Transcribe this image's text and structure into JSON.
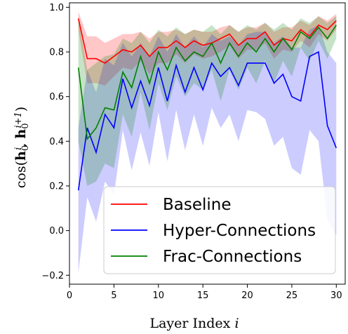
{
  "chart_data": {
    "type": "line",
    "xlabel": "Layer Index i",
    "ylabel": "cos(h0^i, h0^(i+1))",
    "xlim": [
      0,
      31
    ],
    "ylim": [
      -0.24,
      1.02
    ],
    "xticks": [
      0,
      5,
      10,
      15,
      20,
      25,
      30
    ],
    "yticks": [
      -0.2,
      0.0,
      0.2,
      0.4,
      0.6,
      0.8,
      1.0
    ],
    "ytick_labels": [
      "−0.2",
      "0.0",
      "0.2",
      "0.4",
      "0.6",
      "0.8",
      "1.0"
    ],
    "grid": false,
    "legend_position": "lower-right",
    "x": [
      1,
      2,
      3,
      4,
      5,
      6,
      7,
      8,
      9,
      10,
      11,
      12,
      13,
      14,
      15,
      16,
      17,
      18,
      19,
      20,
      21,
      22,
      23,
      24,
      25,
      26,
      27,
      28,
      29,
      30
    ],
    "series": [
      {
        "name": "Baseline",
        "color": "#ff0000",
        "values": [
          0.95,
          0.77,
          0.77,
          0.75,
          0.78,
          0.81,
          0.8,
          0.83,
          0.78,
          0.82,
          0.82,
          0.85,
          0.82,
          0.85,
          0.83,
          0.84,
          0.86,
          0.88,
          0.83,
          0.86,
          0.86,
          0.89,
          0.83,
          0.86,
          0.85,
          0.9,
          0.87,
          0.92,
          0.9,
          0.94
        ],
        "upper": [
          0.98,
          0.87,
          0.87,
          0.84,
          0.86,
          0.88,
          0.88,
          0.89,
          0.86,
          0.89,
          0.89,
          0.9,
          0.88,
          0.9,
          0.89,
          0.89,
          0.91,
          0.92,
          0.89,
          0.91,
          0.91,
          0.93,
          0.89,
          0.91,
          0.91,
          0.94,
          0.92,
          0.96,
          0.94,
          0.97
        ],
        "lower": [
          0.9,
          0.66,
          0.66,
          0.65,
          0.69,
          0.73,
          0.72,
          0.76,
          0.7,
          0.75,
          0.75,
          0.79,
          0.75,
          0.79,
          0.77,
          0.78,
          0.8,
          0.83,
          0.77,
          0.81,
          0.81,
          0.84,
          0.77,
          0.81,
          0.8,
          0.85,
          0.82,
          0.88,
          0.85,
          0.9
        ]
      },
      {
        "name": "Hyper-Connections",
        "color": "#0000ff",
        "values": [
          0.18,
          0.46,
          0.35,
          0.52,
          0.46,
          0.68,
          0.55,
          0.67,
          0.56,
          0.73,
          0.58,
          0.74,
          0.62,
          0.73,
          0.63,
          0.75,
          0.69,
          0.73,
          0.65,
          0.75,
          0.75,
          0.75,
          0.66,
          0.7,
          0.6,
          0.58,
          0.78,
          0.8,
          0.47,
          0.37
        ],
        "upper": [
          0.46,
          0.72,
          0.62,
          0.77,
          0.74,
          0.84,
          0.78,
          0.84,
          0.78,
          0.87,
          0.8,
          0.88,
          0.82,
          0.87,
          0.82,
          0.88,
          0.85,
          0.87,
          0.83,
          0.88,
          0.89,
          0.89,
          0.84,
          0.87,
          0.82,
          0.82,
          0.9,
          0.92,
          0.8,
          0.75
        ],
        "lower": [
          -0.19,
          0.15,
          0.04,
          0.22,
          0.16,
          0.45,
          0.27,
          0.44,
          0.29,
          0.53,
          0.31,
          0.54,
          0.36,
          0.52,
          0.38,
          0.55,
          0.46,
          0.52,
          0.4,
          0.54,
          0.53,
          0.5,
          0.38,
          0.42,
          0.28,
          0.25,
          0.45,
          0.4,
          0.05,
          -0.02
        ]
      },
      {
        "name": "Frac-Connections",
        "color": "#008000",
        "values": [
          0.73,
          0.41,
          0.46,
          0.55,
          0.54,
          0.71,
          0.64,
          0.78,
          0.66,
          0.8,
          0.72,
          0.82,
          0.76,
          0.8,
          0.78,
          0.84,
          0.75,
          0.84,
          0.78,
          0.84,
          0.8,
          0.86,
          0.8,
          0.86,
          0.81,
          0.89,
          0.86,
          0.91,
          0.86,
          0.92
        ],
        "upper": [
          0.95,
          0.72,
          0.75,
          0.78,
          0.79,
          0.86,
          0.84,
          0.89,
          0.84,
          0.9,
          0.87,
          0.91,
          0.88,
          0.9,
          0.89,
          0.92,
          0.88,
          0.92,
          0.89,
          0.92,
          0.9,
          0.93,
          0.9,
          0.93,
          0.9,
          0.95,
          0.93,
          0.96,
          0.93,
          0.96
        ],
        "lower": [
          0.4,
          0.2,
          0.22,
          0.3,
          0.28,
          0.52,
          0.42,
          0.62,
          0.45,
          0.66,
          0.54,
          0.69,
          0.6,
          0.66,
          0.63,
          0.72,
          0.58,
          0.72,
          0.63,
          0.73,
          0.66,
          0.76,
          0.66,
          0.76,
          0.69,
          0.82,
          0.76,
          0.85,
          0.77,
          0.86
        ]
      }
    ]
  }
}
